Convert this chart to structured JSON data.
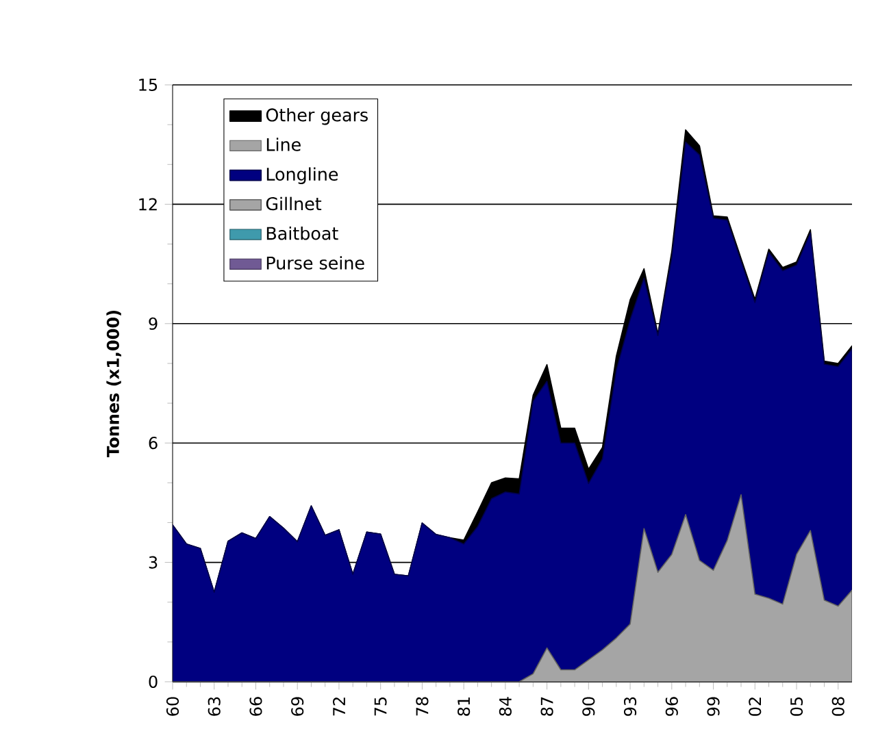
{
  "chart_data": {
    "type": "area",
    "stacked": true,
    "ylabel": "Tonnes  (x1,000)",
    "x": [
      1960,
      1961,
      1962,
      1963,
      1964,
      1965,
      1966,
      1967,
      1968,
      1969,
      1970,
      1971,
      1972,
      1973,
      1974,
      1975,
      1976,
      1977,
      1978,
      1979,
      1980,
      1981,
      1982,
      1983,
      1984,
      1985,
      1986,
      1987,
      1988,
      1989,
      1990,
      1991,
      1992,
      1993,
      1994,
      1995,
      1996,
      1997,
      1998,
      1999,
      2000,
      2001,
      2002,
      2003,
      2004,
      2005,
      2006,
      2007,
      2008,
      2009
    ],
    "xlim": [
      1960,
      2009
    ],
    "ylim": [
      0,
      15
    ],
    "yticks": [
      0,
      3,
      6,
      9,
      12,
      15
    ],
    "xticks": [
      {
        "value": 1960,
        "label": "60"
      },
      {
        "value": 1963,
        "label": "63"
      },
      {
        "value": 1966,
        "label": "66"
      },
      {
        "value": 1969,
        "label": "69"
      },
      {
        "value": 1972,
        "label": "72"
      },
      {
        "value": 1975,
        "label": "75"
      },
      {
        "value": 1978,
        "label": "78"
      },
      {
        "value": 1981,
        "label": "81"
      },
      {
        "value": 1984,
        "label": "84"
      },
      {
        "value": 1987,
        "label": "87"
      },
      {
        "value": 1990,
        "label": "90"
      },
      {
        "value": 1993,
        "label": "93"
      },
      {
        "value": 1996,
        "label": "96"
      },
      {
        "value": 1999,
        "label": "99"
      },
      {
        "value": 2002,
        "label": "02"
      },
      {
        "value": 2005,
        "label": "05"
      },
      {
        "value": 2008,
        "label": "08"
      }
    ],
    "grid": "y",
    "legend": "top left",
    "series": [
      {
        "name": "Purse seine",
        "color": "#705a94",
        "values": [
          null,
          null,
          null,
          null,
          null,
          null,
          null,
          null,
          null,
          null,
          null,
          null,
          null,
          null,
          null,
          null,
          null,
          null,
          null,
          null,
          null,
          null,
          null,
          null,
          null,
          null,
          null,
          null,
          null,
          null,
          null,
          null,
          null,
          null,
          null,
          null,
          null,
          null,
          null,
          null,
          null,
          null,
          null,
          null,
          null,
          null,
          null,
          null,
          null,
          null
        ]
      },
      {
        "name": "Baitboat",
        "color": "#3f9aac",
        "values": [
          null,
          null,
          null,
          null,
          null,
          null,
          null,
          null,
          null,
          null,
          null,
          null,
          null,
          null,
          null,
          null,
          null,
          null,
          null,
          null,
          null,
          null,
          null,
          null,
          null,
          null,
          null,
          null,
          null,
          null,
          null,
          null,
          null,
          null,
          null,
          null,
          null,
          null,
          null,
          null,
          null,
          null,
          null,
          null,
          null,
          null,
          null,
          null,
          null,
          null
        ]
      },
      {
        "name": "Gillnet",
        "color": "#a5a5a5",
        "values": [
          0,
          0,
          0,
          0,
          0,
          0,
          0,
          0,
          0,
          0,
          0,
          0,
          0,
          0,
          0,
          0,
          0,
          0,
          0,
          0,
          0,
          0,
          0,
          0,
          0,
          0,
          0.2,
          0.85,
          0.3,
          0.3,
          0.55,
          0.8,
          1.1,
          1.45,
          3.85,
          2.75,
          3.2,
          4.2,
          3.05,
          2.8,
          3.55,
          4.7,
          2.2,
          2.1,
          1.95,
          3.2,
          3.8,
          2.05,
          1.9,
          2.3
        ]
      },
      {
        "name": "Longline",
        "color": "#000080",
        "values": [
          3.94,
          3.46,
          3.35,
          2.25,
          3.53,
          3.74,
          3.6,
          4.15,
          3.86,
          3.52,
          4.42,
          3.68,
          3.82,
          2.7,
          3.76,
          3.71,
          2.7,
          2.66,
          3.99,
          3.7,
          3.62,
          3.46,
          3.9,
          4.6,
          4.77,
          4.72,
          6.85,
          6.7,
          5.7,
          5.7,
          4.43,
          4.8,
          6.73,
          7.65,
          6.29,
          5.95,
          7.45,
          9.36,
          10.19,
          8.85,
          8.05,
          5.86,
          7.33,
          8.69,
          8.38,
          7.27,
          7.48,
          5.93,
          6.02,
          6.06
        ]
      },
      {
        "name": "Line",
        "color": "#a5a5a5",
        "values": [
          null,
          null,
          null,
          null,
          null,
          null,
          null,
          null,
          null,
          null,
          null,
          null,
          null,
          null,
          null,
          null,
          null,
          null,
          null,
          null,
          null,
          null,
          null,
          null,
          null,
          null,
          null,
          null,
          null,
          null,
          null,
          null,
          null,
          null,
          null,
          null,
          null,
          null,
          null,
          null,
          null,
          null,
          null,
          null,
          null,
          null,
          null,
          null,
          null,
          null
        ]
      },
      {
        "name": "Other gears",
        "color": "#000000",
        "values": [
          0,
          0,
          0,
          0,
          0,
          0,
          0,
          0,
          0,
          0,
          0,
          0,
          0,
          0,
          0,
          0,
          0,
          0,
          0,
          0,
          0,
          0.1,
          0.37,
          0.4,
          0.35,
          0.38,
          0.15,
          0.42,
          0.37,
          0.37,
          0.36,
          0.29,
          0.35,
          0.5,
          0.24,
          0.05,
          0.16,
          0.31,
          0.23,
          0.06,
          0.08,
          0.08,
          0.08,
          0.08,
          0.08,
          0.08,
          0.08,
          0.08,
          0.08,
          0.08
        ]
      }
    ]
  }
}
